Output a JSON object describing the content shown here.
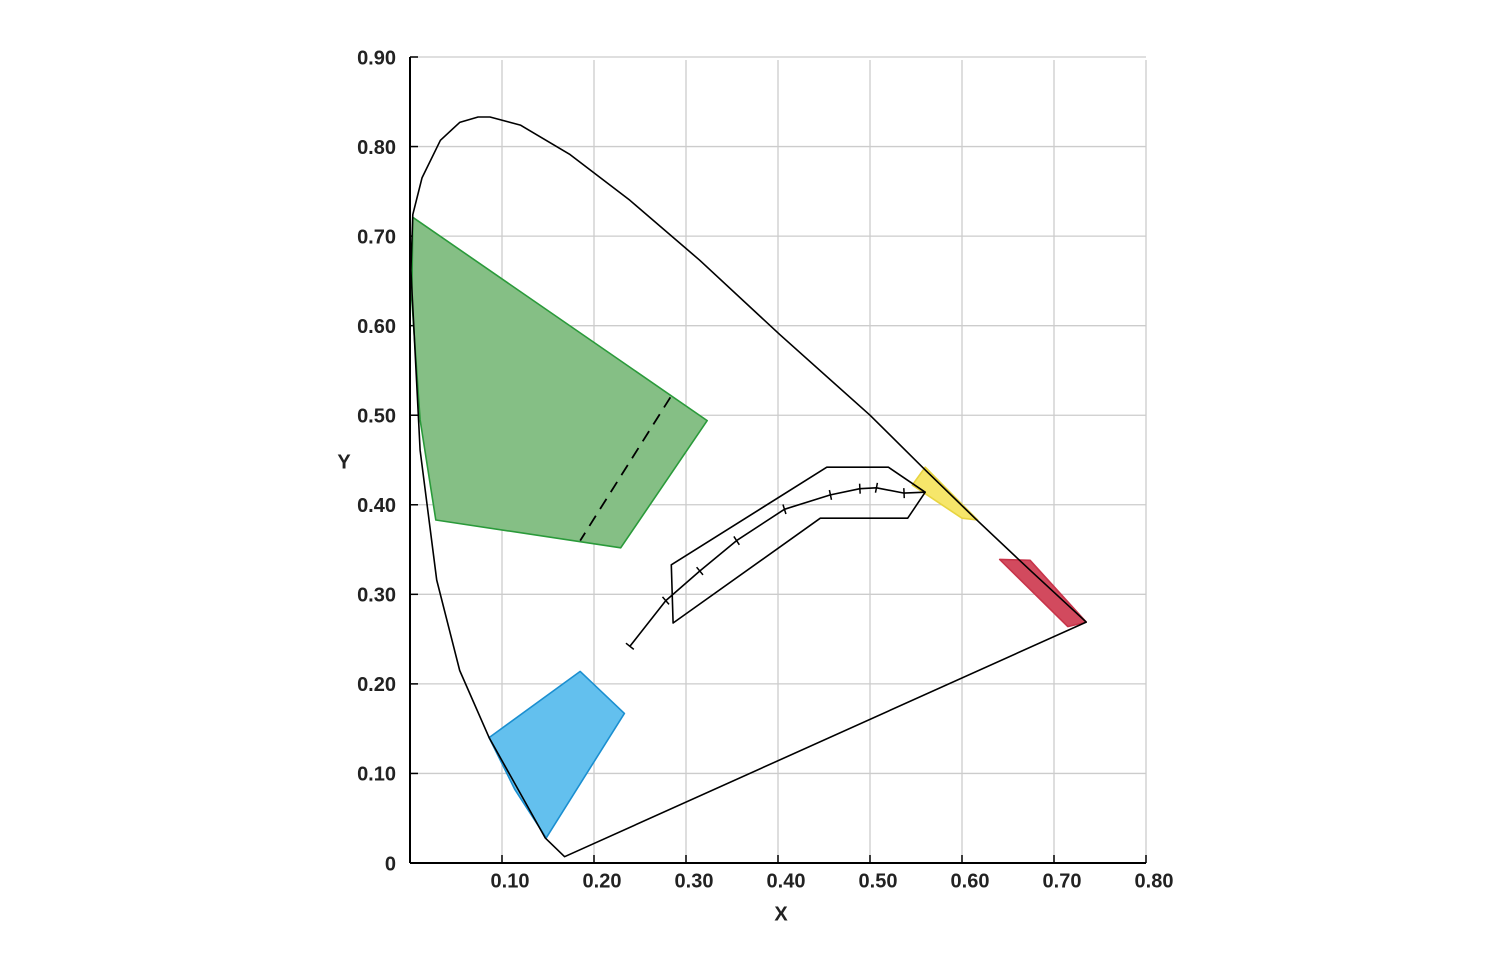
{
  "chart_data": {
    "type": "line",
    "xlabel": "X",
    "ylabel": "Y",
    "xlim": [
      0,
      0.8
    ],
    "ylim": [
      0,
      0.9
    ],
    "xticks": [
      {
        "value": 0.1,
        "label": "0.10"
      },
      {
        "value": 0.2,
        "label": "0.20"
      },
      {
        "value": 0.3,
        "label": "0.30"
      },
      {
        "value": 0.4,
        "label": "0.40"
      },
      {
        "value": 0.5,
        "label": "0.50"
      },
      {
        "value": 0.6,
        "label": "0.60"
      },
      {
        "value": 0.7,
        "label": "0.70"
      },
      {
        "value": 0.8,
        "label": "0.80"
      }
    ],
    "yticks": [
      0,
      {
        "value": 0.1,
        "label": "0.10"
      },
      {
        "value": 0.2,
        "label": "0.20"
      },
      {
        "value": 0.3,
        "label": "0.30"
      },
      {
        "value": 0.4,
        "label": "0.40"
      },
      {
        "value": 0.5,
        "label": "0.50"
      },
      {
        "value": 0.6,
        "label": "0.60"
      },
      {
        "value": 0.7,
        "label": "0.70"
      },
      {
        "value": 0.8,
        "label": "0.80"
      },
      {
        "value": 0.9,
        "label": "0.90"
      }
    ],
    "grid": true,
    "series": [
      {
        "kind": "polygon",
        "color": "#2a9a3a",
        "fill": "#85bf85",
        "x": [
          0.003,
          0.323,
          0.229,
          0.028,
          0.011,
          0.002
        ],
        "y": [
          0.721,
          0.494,
          0.352,
          0.383,
          0.495,
          0.629
        ]
      },
      {
        "kind": "polygon",
        "color": "#1b8fd0",
        "fill": "#63c0ee",
        "x": [
          0.086,
          0.185,
          0.233,
          0.148,
          0.114
        ],
        "y": [
          0.14,
          0.214,
          0.167,
          0.028,
          0.082
        ]
      },
      {
        "kind": "polygon",
        "color": "#e8d440",
        "fill": "#f6e66a",
        "x": [
          0.56,
          0.617,
          0.6,
          0.546
        ],
        "y": [
          0.442,
          0.383,
          0.385,
          0.422
        ]
      },
      {
        "kind": "polygon",
        "color": "#c8344a",
        "fill": "#d24a5e",
        "x": [
          0.641,
          0.674,
          0.735,
          0.715
        ],
        "y": [
          0.339,
          0.338,
          0.269,
          0.264
        ]
      },
      {
        "kind": "closed",
        "color": "#000000",
        "x": [
          0.168,
          0.147,
          0.086,
          0.054,
          0.029,
          0.011,
          0.001,
          0.003,
          0.013,
          0.033,
          0.054,
          0.074,
          0.087,
          0.12,
          0.174,
          0.239,
          0.315,
          0.402,
          0.5,
          0.56,
          0.614,
          0.674,
          0.735
        ],
        "y": [
          0.007,
          0.028,
          0.14,
          0.215,
          0.316,
          0.461,
          0.662,
          0.724,
          0.765,
          0.807,
          0.827,
          0.833,
          0.833,
          0.824,
          0.791,
          0.74,
          0.673,
          0.59,
          0.5,
          0.439,
          0.385,
          0.327,
          0.269
        ]
      },
      {
        "kind": "closed",
        "color": "#000000",
        "x": [
          0.286,
          0.284,
          0.453,
          0.52,
          0.56,
          0.541,
          0.446
        ],
        "y": [
          0.268,
          0.333,
          0.442,
          0.442,
          0.414,
          0.385,
          0.385
        ]
      },
      {
        "kind": "ticked",
        "color": "#000000",
        "x": [
          0.239,
          0.278,
          0.315,
          0.355,
          0.407,
          0.457,
          0.489,
          0.507,
          0.537,
          0.56
        ],
        "y": [
          0.242,
          0.293,
          0.326,
          0.36,
          0.395,
          0.411,
          0.418,
          0.419,
          0.413,
          0.414
        ]
      },
      {
        "kind": "dashed",
        "color": "#000000",
        "x": [
          0.283,
          0.185
        ],
        "y": [
          0.52,
          0.36
        ]
      }
    ]
  }
}
